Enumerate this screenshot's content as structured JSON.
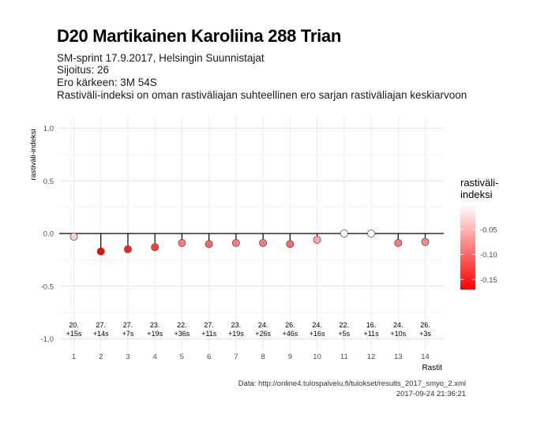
{
  "header": {
    "title": "D20 Martikainen Karoliina 288 Trian",
    "subtitle_lines": [
      "SM-sprint 17.9.2017, Helsingin Suunnistajat",
      "Sijoitus: 26",
      "Ero kärkeen: 3M 54S",
      "Rastiväli-indeksi on oman rastiväliajan suhteellinen ero sarjan rastiväliajan keskiarvoon"
    ]
  },
  "caption": {
    "source": "Data: http://online4.tulospalvelu.fi/tulokset/results_2017_smyo_2.xml",
    "timestamp": "2017-09-24 21:36:21"
  },
  "chart_data": {
    "type": "lollipop",
    "xlabel": "Rastit",
    "ylabel": "rastiväli-indeksi",
    "ylim": [
      -1.0,
      1.0
    ],
    "y_ticks": [
      "1.0",
      "0.5",
      "0.0",
      "-0.5",
      "-1.0"
    ],
    "y_tick_values": [
      1.0,
      0.5,
      0.0,
      -0.5,
      -1.0
    ],
    "x": [
      1,
      2,
      3,
      4,
      5,
      6,
      7,
      8,
      9,
      10,
      11,
      12,
      13,
      14
    ],
    "values": [
      -0.03,
      -0.17,
      -0.15,
      -0.13,
      -0.09,
      -0.1,
      -0.09,
      -0.09,
      -0.1,
      -0.06,
      0.0,
      0.0,
      -0.09,
      -0.08
    ],
    "rank_labels": [
      "20.",
      "27.",
      "27.",
      "23.",
      "22.",
      "27.",
      "23.",
      "24.",
      "26.",
      "24.",
      "22.",
      "16.",
      "24.",
      "26."
    ],
    "diff_labels": [
      "+15s",
      "+14s",
      "+7s",
      "+19s",
      "+36s",
      "+11s",
      "+19s",
      "+26s",
      "+46s",
      "+16s",
      "+5s",
      "+11s",
      "+10s",
      "+3s"
    ],
    "grid": true,
    "legend": {
      "title_lines": [
        "rastiväli-",
        "indeksi"
      ],
      "ticks": [
        "-0.05",
        "-0.10",
        "-0.15"
      ],
      "tick_values": [
        -0.05,
        -0.1,
        -0.15
      ],
      "range": [
        -0.17,
        0.0
      ],
      "color_low": "#ff0000",
      "color_high": "#ffffff",
      "placement": "right"
    }
  }
}
